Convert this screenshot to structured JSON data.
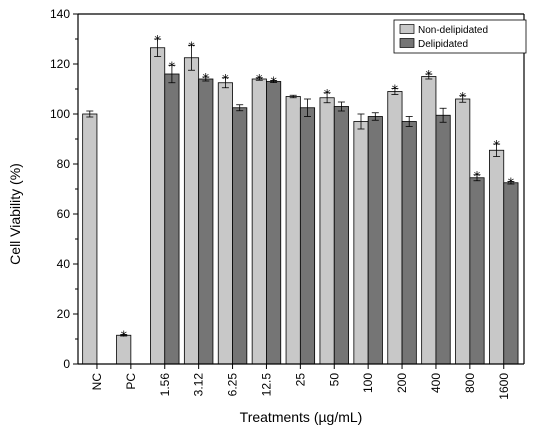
{
  "chart_data": {
    "type": "bar",
    "title": "",
    "xlabel": "Treatments (µg/mL)",
    "ylabel": "Cell Viability (%)",
    "ylim": [
      0,
      140
    ],
    "yticks": [
      0,
      20,
      40,
      60,
      80,
      100,
      120,
      140
    ],
    "legend_position": "top-right",
    "grid": false,
    "categories": [
      "NC",
      "PC",
      "1.56",
      "3.12",
      "6.25",
      "12.5",
      "25",
      "50",
      "100",
      "200",
      "400",
      "800",
      "1600"
    ],
    "significance_marker": "*",
    "colors": {
      "non_delipidated": "#c8c8c8",
      "delipidated": "#757575"
    },
    "series": [
      {
        "name": "Non-delipidated",
        "values": [
          100,
          11.5,
          126.5,
          122.5,
          112.5,
          114,
          107,
          106.5,
          97,
          109,
          115,
          106,
          85.5
        ],
        "errors": [
          1.2,
          0.3,
          3.5,
          5,
          2,
          0.5,
          0.5,
          2,
          3,
          1.2,
          1,
          1.3,
          2.5
        ],
        "significant": [
          false,
          true,
          true,
          true,
          true,
          true,
          false,
          true,
          false,
          true,
          true,
          true,
          true
        ]
      },
      {
        "name": "Delipidated",
        "values": [
          null,
          null,
          116,
          114,
          102.5,
          113,
          102.5,
          103,
          99,
          97,
          99.5,
          74.5,
          72.5
        ],
        "errors": [
          null,
          null,
          3.5,
          0.8,
          1.2,
          0.4,
          3.5,
          1.8,
          1.5,
          2,
          2.8,
          1.2,
          0.5
        ],
        "significant": [
          false,
          false,
          true,
          true,
          false,
          true,
          false,
          false,
          false,
          false,
          false,
          true,
          true
        ]
      }
    ]
  }
}
